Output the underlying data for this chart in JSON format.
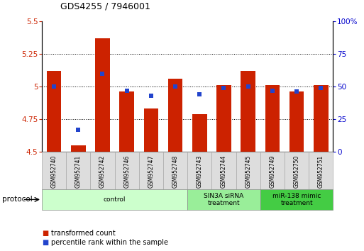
{
  "title": "GDS4255 / 7946001",
  "samples": [
    "GSM952740",
    "GSM952741",
    "GSM952742",
    "GSM952746",
    "GSM952747",
    "GSM952748",
    "GSM952743",
    "GSM952744",
    "GSM952745",
    "GSM952749",
    "GSM952750",
    "GSM952751"
  ],
  "bar_values": [
    5.12,
    4.55,
    5.37,
    4.96,
    4.83,
    5.06,
    4.79,
    5.01,
    5.12,
    5.01,
    4.96,
    5.01
  ],
  "blue_values": [
    50,
    17,
    60,
    47,
    43,
    50,
    44,
    49,
    50,
    47,
    46,
    49
  ],
  "bar_bottom": 4.5,
  "ylim_left": [
    4.5,
    5.5
  ],
  "ylim_right": [
    0,
    100
  ],
  "yticks_left": [
    4.5,
    4.75,
    5.0,
    5.25,
    5.5
  ],
  "yticks_right": [
    0,
    25,
    50,
    75,
    100
  ],
  "ytick_labels_left": [
    "4.5",
    "4.75",
    "5",
    "5.25",
    "5.5"
  ],
  "ytick_labels_right": [
    "0",
    "25",
    "50",
    "75",
    "100%"
  ],
  "gridlines": [
    4.75,
    5.0,
    5.25
  ],
  "bar_color": "#cc2200",
  "blue_color": "#2244cc",
  "protocol_groups": [
    {
      "label": "control",
      "start": 0,
      "end": 5,
      "color": "#ccffcc"
    },
    {
      "label": "SIN3A siRNA\ntreatment",
      "start": 6,
      "end": 8,
      "color": "#99ee99"
    },
    {
      "label": "miR-138 mimic\ntreatment",
      "start": 9,
      "end": 11,
      "color": "#44cc44"
    }
  ],
  "protocol_label": "protocol",
  "legend_items": [
    {
      "label": "transformed count",
      "color": "#cc2200"
    },
    {
      "label": "percentile rank within the sample",
      "color": "#2244cc"
    }
  ],
  "left_label_color": "#cc2200",
  "right_label_color": "#0000cc",
  "bg_color": "#ffffff",
  "bar_width": 0.6,
  "figsize": [
    5.13,
    3.54
  ],
  "dpi": 100
}
